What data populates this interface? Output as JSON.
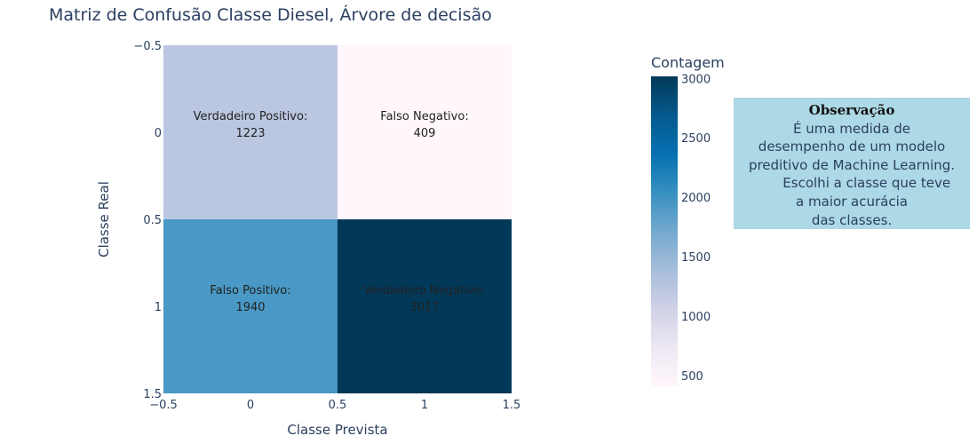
{
  "chart_data": {
    "type": "heatmap",
    "title": "Matriz de Confusão Classe Diesel, Árvore de decisão",
    "xlabel": "Classe Prevista",
    "ylabel": "Classe Real",
    "x": [
      0,
      1
    ],
    "y": [
      0,
      1
    ],
    "xlim": [
      -0.5,
      1.5
    ],
    "ylim": [
      -0.5,
      1.5
    ],
    "y_reversed": true,
    "x_tick_labels": [
      "−0.5",
      "0",
      "0.5",
      "1",
      "1.5"
    ],
    "y_tick_labels": [
      "−0.5",
      "0",
      "0.5",
      "1",
      "1.5"
    ],
    "z": [
      [
        1223,
        409
      ],
      [
        1940,
        3017
      ]
    ],
    "annotations": [
      [
        "Verdadeiro Positivo:",
        "1223"
      ],
      [
        "Falso Negativo:",
        "409"
      ],
      [
        "Falso Positivo:",
        "1940"
      ],
      [
        "Verdadeiro Negativo:",
        "3017"
      ]
    ],
    "colorscale": "PuBu",
    "colorscale_stops": [
      "#fff7fb",
      "#ece7f2",
      "#d0d1e6",
      "#a6bddb",
      "#74a9cf",
      "#3690c0",
      "#0570b0",
      "#045a8d",
      "#023858"
    ],
    "colorbar": {
      "title": "Contagem",
      "range": [
        409,
        3017
      ],
      "ticks": [
        500,
        1000,
        1500,
        2000,
        2500,
        3000
      ],
      "tick_labels": [
        "500",
        "1000",
        "1500",
        "2000",
        "2500",
        "3000"
      ]
    }
  },
  "note": {
    "title": "Observação",
    "lines": [
      "É uma medida de",
      "desempenho de um modelo",
      "preditivo de Machine Learning.",
      "       Escolhi a classe que teve",
      "a maior acurácia",
      "das classes."
    ]
  },
  "colors": {
    "note_background": "#add8e6",
    "text": "#2a3f5f"
  }
}
